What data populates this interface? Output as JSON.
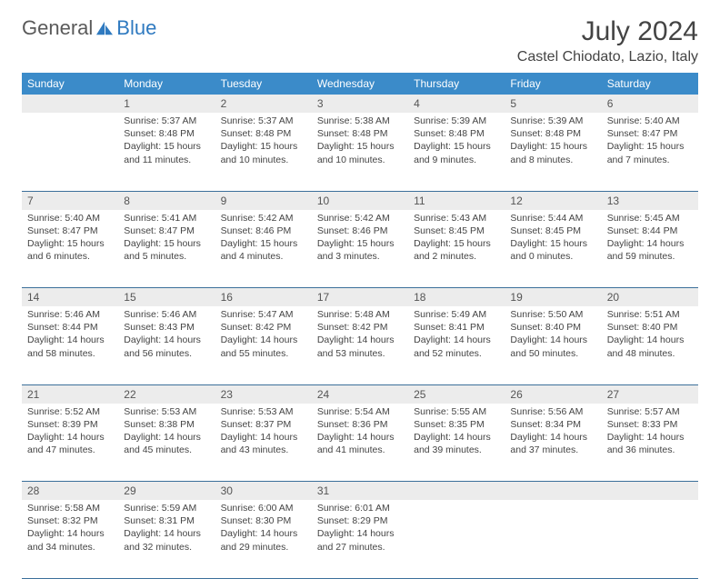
{
  "brand": {
    "part1": "General",
    "part2": "Blue"
  },
  "title": "July 2024",
  "location": "Castel Chiodato, Lazio, Italy",
  "colors": {
    "header_bg": "#3b8bc9",
    "header_text": "#ffffff",
    "daynum_bg": "#ececec",
    "border": "#3b6f9a",
    "brand_blue": "#2f7ac0",
    "text": "#444444"
  },
  "weekdays": [
    "Sunday",
    "Monday",
    "Tuesday",
    "Wednesday",
    "Thursday",
    "Friday",
    "Saturday"
  ],
  "weeks": [
    {
      "nums": [
        "",
        "1",
        "2",
        "3",
        "4",
        "5",
        "6"
      ],
      "cells": [
        null,
        {
          "sunrise": "Sunrise: 5:37 AM",
          "sunset": "Sunset: 8:48 PM",
          "daylight": "Daylight: 15 hours and 11 minutes."
        },
        {
          "sunrise": "Sunrise: 5:37 AM",
          "sunset": "Sunset: 8:48 PM",
          "daylight": "Daylight: 15 hours and 10 minutes."
        },
        {
          "sunrise": "Sunrise: 5:38 AM",
          "sunset": "Sunset: 8:48 PM",
          "daylight": "Daylight: 15 hours and 10 minutes."
        },
        {
          "sunrise": "Sunrise: 5:39 AM",
          "sunset": "Sunset: 8:48 PM",
          "daylight": "Daylight: 15 hours and 9 minutes."
        },
        {
          "sunrise": "Sunrise: 5:39 AM",
          "sunset": "Sunset: 8:48 PM",
          "daylight": "Daylight: 15 hours and 8 minutes."
        },
        {
          "sunrise": "Sunrise: 5:40 AM",
          "sunset": "Sunset: 8:47 PM",
          "daylight": "Daylight: 15 hours and 7 minutes."
        }
      ]
    },
    {
      "nums": [
        "7",
        "8",
        "9",
        "10",
        "11",
        "12",
        "13"
      ],
      "cells": [
        {
          "sunrise": "Sunrise: 5:40 AM",
          "sunset": "Sunset: 8:47 PM",
          "daylight": "Daylight: 15 hours and 6 minutes."
        },
        {
          "sunrise": "Sunrise: 5:41 AM",
          "sunset": "Sunset: 8:47 PM",
          "daylight": "Daylight: 15 hours and 5 minutes."
        },
        {
          "sunrise": "Sunrise: 5:42 AM",
          "sunset": "Sunset: 8:46 PM",
          "daylight": "Daylight: 15 hours and 4 minutes."
        },
        {
          "sunrise": "Sunrise: 5:42 AM",
          "sunset": "Sunset: 8:46 PM",
          "daylight": "Daylight: 15 hours and 3 minutes."
        },
        {
          "sunrise": "Sunrise: 5:43 AM",
          "sunset": "Sunset: 8:45 PM",
          "daylight": "Daylight: 15 hours and 2 minutes."
        },
        {
          "sunrise": "Sunrise: 5:44 AM",
          "sunset": "Sunset: 8:45 PM",
          "daylight": "Daylight: 15 hours and 0 minutes."
        },
        {
          "sunrise": "Sunrise: 5:45 AM",
          "sunset": "Sunset: 8:44 PM",
          "daylight": "Daylight: 14 hours and 59 minutes."
        }
      ]
    },
    {
      "nums": [
        "14",
        "15",
        "16",
        "17",
        "18",
        "19",
        "20"
      ],
      "cells": [
        {
          "sunrise": "Sunrise: 5:46 AM",
          "sunset": "Sunset: 8:44 PM",
          "daylight": "Daylight: 14 hours and 58 minutes."
        },
        {
          "sunrise": "Sunrise: 5:46 AM",
          "sunset": "Sunset: 8:43 PM",
          "daylight": "Daylight: 14 hours and 56 minutes."
        },
        {
          "sunrise": "Sunrise: 5:47 AM",
          "sunset": "Sunset: 8:42 PM",
          "daylight": "Daylight: 14 hours and 55 minutes."
        },
        {
          "sunrise": "Sunrise: 5:48 AM",
          "sunset": "Sunset: 8:42 PM",
          "daylight": "Daylight: 14 hours and 53 minutes."
        },
        {
          "sunrise": "Sunrise: 5:49 AM",
          "sunset": "Sunset: 8:41 PM",
          "daylight": "Daylight: 14 hours and 52 minutes."
        },
        {
          "sunrise": "Sunrise: 5:50 AM",
          "sunset": "Sunset: 8:40 PM",
          "daylight": "Daylight: 14 hours and 50 minutes."
        },
        {
          "sunrise": "Sunrise: 5:51 AM",
          "sunset": "Sunset: 8:40 PM",
          "daylight": "Daylight: 14 hours and 48 minutes."
        }
      ]
    },
    {
      "nums": [
        "21",
        "22",
        "23",
        "24",
        "25",
        "26",
        "27"
      ],
      "cells": [
        {
          "sunrise": "Sunrise: 5:52 AM",
          "sunset": "Sunset: 8:39 PM",
          "daylight": "Daylight: 14 hours and 47 minutes."
        },
        {
          "sunrise": "Sunrise: 5:53 AM",
          "sunset": "Sunset: 8:38 PM",
          "daylight": "Daylight: 14 hours and 45 minutes."
        },
        {
          "sunrise": "Sunrise: 5:53 AM",
          "sunset": "Sunset: 8:37 PM",
          "daylight": "Daylight: 14 hours and 43 minutes."
        },
        {
          "sunrise": "Sunrise: 5:54 AM",
          "sunset": "Sunset: 8:36 PM",
          "daylight": "Daylight: 14 hours and 41 minutes."
        },
        {
          "sunrise": "Sunrise: 5:55 AM",
          "sunset": "Sunset: 8:35 PM",
          "daylight": "Daylight: 14 hours and 39 minutes."
        },
        {
          "sunrise": "Sunrise: 5:56 AM",
          "sunset": "Sunset: 8:34 PM",
          "daylight": "Daylight: 14 hours and 37 minutes."
        },
        {
          "sunrise": "Sunrise: 5:57 AM",
          "sunset": "Sunset: 8:33 PM",
          "daylight": "Daylight: 14 hours and 36 minutes."
        }
      ]
    },
    {
      "nums": [
        "28",
        "29",
        "30",
        "31",
        "",
        "",
        ""
      ],
      "cells": [
        {
          "sunrise": "Sunrise: 5:58 AM",
          "sunset": "Sunset: 8:32 PM",
          "daylight": "Daylight: 14 hours and 34 minutes."
        },
        {
          "sunrise": "Sunrise: 5:59 AM",
          "sunset": "Sunset: 8:31 PM",
          "daylight": "Daylight: 14 hours and 32 minutes."
        },
        {
          "sunrise": "Sunrise: 6:00 AM",
          "sunset": "Sunset: 8:30 PM",
          "daylight": "Daylight: 14 hours and 29 minutes."
        },
        {
          "sunrise": "Sunrise: 6:01 AM",
          "sunset": "Sunset: 8:29 PM",
          "daylight": "Daylight: 14 hours and 27 minutes."
        },
        null,
        null,
        null
      ]
    }
  ]
}
